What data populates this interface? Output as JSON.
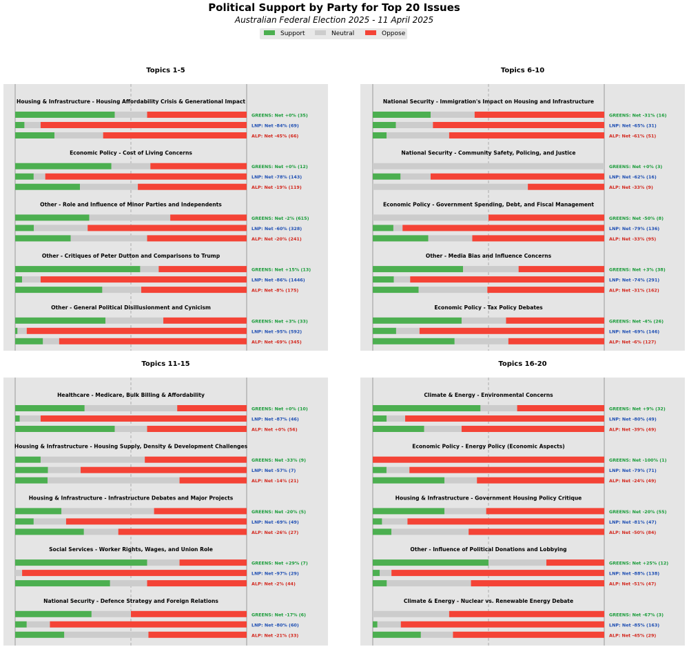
{
  "chart_data": {
    "type": "bar",
    "title": "Political Support by Party for Top 20 Issues",
    "subtitle": "Australian Federal Election 2025 - 11 April 2025",
    "legend": {
      "placement": "top-center",
      "items": [
        {
          "label": "Support",
          "color": "#4caf50"
        },
        {
          "label": "Neutral",
          "color": "#cccccc"
        },
        {
          "label": "Oppose",
          "color": "#f44336"
        }
      ]
    },
    "party_colors": {
      "GREENS": "#1a9c3a",
      "LNP": "#1f4fb3",
      "ALP": "#d3281e"
    },
    "panels": [
      {
        "title": "Topics 1-5",
        "topics": [
          {
            "title": "Housing & Infrastructure - Housing Affordability Crisis & Generational Impact",
            "bars": [
              {
                "party": "GREENS",
                "support": 43,
                "neutral": 14,
                "oppose": 43,
                "label": "GREENS: Net +0% (35)"
              },
              {
                "party": "LNP",
                "support": 4,
                "neutral": 7,
                "oppose": 89,
                "label": "LNP: Net -84% (69)"
              },
              {
                "party": "ALP",
                "support": 17,
                "neutral": 21,
                "oppose": 62,
                "label": "ALP: Net -45% (66)"
              }
            ]
          },
          {
            "title": "Economic Policy - Cost of Living Concerns",
            "bars": [
              {
                "party": "GREENS",
                "support": 42,
                "neutral": 17,
                "oppose": 42,
                "label": "GREENS: Net +0% (12)"
              },
              {
                "party": "LNP",
                "support": 8,
                "neutral": 5,
                "oppose": 87,
                "label": "LNP: Net -78% (143)"
              },
              {
                "party": "ALP",
                "support": 28,
                "neutral": 25,
                "oppose": 47,
                "label": "ALP: Net -19% (119)"
              }
            ]
          },
          {
            "title": "Other - Role and Influence of Minor Parties and Independents",
            "bars": [
              {
                "party": "GREENS",
                "support": 32,
                "neutral": 35,
                "oppose": 33,
                "label": "GREENS: Net -2% (615)"
              },
              {
                "party": "LNP",
                "support": 8,
                "neutral": 23,
                "oppose": 68,
                "label": "LNP: Net -60% (328)"
              },
              {
                "party": "ALP",
                "support": 24,
                "neutral": 33,
                "oppose": 43,
                "label": "ALP: Net -20% (241)"
              }
            ]
          },
          {
            "title": "Other - Critiques of Peter Dutton and Comparisons to Trump",
            "bars": [
              {
                "party": "GREENS",
                "support": 54,
                "neutral": 8,
                "oppose": 38,
                "label": "GREENS: Net +15% (13)"
              },
              {
                "party": "LNP",
                "support": 3,
                "neutral": 8,
                "oppose": 89,
                "label": "LNP: Net -86% (1446)"
              },
              {
                "party": "ALP",
                "support": 38,
                "neutral": 17,
                "oppose": 46,
                "label": "ALP: Net -8% (175)"
              }
            ]
          },
          {
            "title": "Other - General Political Disillusionment and Cynicism",
            "bars": [
              {
                "party": "GREENS",
                "support": 39,
                "neutral": 25,
                "oppose": 36,
                "label": "GREENS: Net +3% (33)"
              },
              {
                "party": "LNP",
                "support": 1,
                "neutral": 4,
                "oppose": 95,
                "label": "LNP: Net -95% (592)"
              },
              {
                "party": "ALP",
                "support": 12,
                "neutral": 7,
                "oppose": 81,
                "label": "ALP: Net -69% (345)"
              }
            ]
          }
        ]
      },
      {
        "title": "Topics 6-10",
        "topics": [
          {
            "title": "National Security - Immigration's Impact on Housing and Infrastructure",
            "bars": [
              {
                "party": "GREENS",
                "support": 25,
                "neutral": 19,
                "oppose": 56,
                "label": "GREENS: Net -31% (16)"
              },
              {
                "party": "LNP",
                "support": 10,
                "neutral": 16,
                "oppose": 74,
                "label": "LNP: Net -65% (31)"
              },
              {
                "party": "ALP",
                "support": 6,
                "neutral": 27,
                "oppose": 67,
                "label": "ALP: Net -61% (51)"
              }
            ]
          },
          {
            "title": "National Security - Community Safety, Policing, and Justice",
            "bars": [
              {
                "party": "GREENS",
                "support": 0,
                "neutral": 100,
                "oppose": 0,
                "label": "GREENS: Net +0% (3)"
              },
              {
                "party": "LNP",
                "support": 12,
                "neutral": 13,
                "oppose": 75,
                "label": "LNP: Net -62% (16)"
              },
              {
                "party": "ALP",
                "support": 0,
                "neutral": 67,
                "oppose": 33,
                "label": "ALP: Net -33% (9)"
              }
            ]
          },
          {
            "title": "Economic Policy - Government Spending, Debt, and Fiscal Management",
            "bars": [
              {
                "party": "GREENS",
                "support": 0,
                "neutral": 50,
                "oppose": 50,
                "label": "GREENS: Net -50% (8)"
              },
              {
                "party": "LNP",
                "support": 9,
                "neutral": 4,
                "oppose": 88,
                "label": "LNP: Net -79% (136)"
              },
              {
                "party": "ALP",
                "support": 24,
                "neutral": 19,
                "oppose": 57,
                "label": "ALP: Net -33% (95)"
              }
            ]
          },
          {
            "title": "Other - Media Bias and Influence Concerns",
            "bars": [
              {
                "party": "GREENS",
                "support": 39,
                "neutral": 24,
                "oppose": 37,
                "label": "GREENS: Net +3% (38)"
              },
              {
                "party": "LNP",
                "support": 9,
                "neutral": 7,
                "oppose": 83,
                "label": "LNP: Net -74% (291)"
              },
              {
                "party": "ALP",
                "support": 20,
                "neutral": 30,
                "oppose": 51,
                "label": "ALP: Net -31% (162)"
              }
            ]
          },
          {
            "title": "Economic Policy - Tax Policy Debates",
            "bars": [
              {
                "party": "GREENS",
                "support": 38,
                "neutral": 19,
                "oppose": 42,
                "label": "GREENS: Net -4% (26)"
              },
              {
                "party": "LNP",
                "support": 10,
                "neutral": 10,
                "oppose": 79,
                "label": "LNP: Net -69% (146)"
              },
              {
                "party": "ALP",
                "support": 35,
                "neutral": 23,
                "oppose": 41,
                "label": "ALP: Net -6% (127)"
              }
            ]
          }
        ]
      },
      {
        "title": "Topics 11-15",
        "topics": [
          {
            "title": "Healthcare - Medicare, Bulk Billing & Affordability",
            "bars": [
              {
                "party": "GREENS",
                "support": 30,
                "neutral": 40,
                "oppose": 30,
                "label": "GREENS: Net +0% (10)"
              },
              {
                "party": "LNP",
                "support": 2,
                "neutral": 9,
                "oppose": 89,
                "label": "LNP: Net -87% (46)"
              },
              {
                "party": "ALP",
                "support": 43,
                "neutral": 14,
                "oppose": 43,
                "label": "ALP: Net +0% (56)"
              }
            ]
          },
          {
            "title": "Housing & Infrastructure - Housing Supply, Density & Development Challenges",
            "bars": [
              {
                "party": "GREENS",
                "support": 11,
                "neutral": 45,
                "oppose": 44,
                "label": "GREENS: Net -33% (9)"
              },
              {
                "party": "LNP",
                "support": 14,
                "neutral": 14,
                "oppose": 71,
                "label": "LNP: Net -57% (7)"
              },
              {
                "party": "ALP",
                "support": 14,
                "neutral": 57,
                "oppose": 29,
                "label": "ALP: Net -14% (21)"
              }
            ]
          },
          {
            "title": "Housing & Infrastructure - Infrastructure Debates and Major Projects",
            "bars": [
              {
                "party": "GREENS",
                "support": 20,
                "neutral": 40,
                "oppose": 40,
                "label": "GREENS: Net -20% (5)"
              },
              {
                "party": "LNP",
                "support": 8,
                "neutral": 14,
                "oppose": 78,
                "label": "LNP: Net -69% (49)"
              },
              {
                "party": "ALP",
                "support": 30,
                "neutral": 15,
                "oppose": 56,
                "label": "ALP: Net -26% (27)"
              }
            ]
          },
          {
            "title": "Social Services - Worker Rights, Wages, and Union Role",
            "bars": [
              {
                "party": "GREENS",
                "support": 57,
                "neutral": 14,
                "oppose": 29,
                "label": "GREENS: Net +29% (7)"
              },
              {
                "party": "LNP",
                "support": 0,
                "neutral": 3,
                "oppose": 97,
                "label": "LNP: Net -97% (29)"
              },
              {
                "party": "ALP",
                "support": 41,
                "neutral": 16,
                "oppose": 43,
                "label": "ALP: Net -2% (44)"
              }
            ]
          },
          {
            "title": "National Security - Defence Strategy and Foreign Relations",
            "bars": [
              {
                "party": "GREENS",
                "support": 33,
                "neutral": 17,
                "oppose": 50,
                "label": "GREENS: Net -17% (6)"
              },
              {
                "party": "LNP",
                "support": 5,
                "neutral": 10,
                "oppose": 85,
                "label": "LNP: Net -80% (60)"
              },
              {
                "party": "ALP",
                "support": 21,
                "neutral": 36,
                "oppose": 42,
                "label": "ALP: Net -21% (33)"
              }
            ]
          }
        ]
      },
      {
        "title": "Topics 16-20",
        "topics": [
          {
            "title": "Climate & Energy - Environmental Concerns",
            "bars": [
              {
                "party": "GREENS",
                "support": 47,
                "neutral": 16,
                "oppose": 38,
                "label": "GREENS: Net +9% (32)"
              },
              {
                "party": "LNP",
                "support": 6,
                "neutral": 8,
                "oppose": 86,
                "label": "LNP: Net -80% (49)"
              },
              {
                "party": "ALP",
                "support": 22,
                "neutral": 16,
                "oppose": 61,
                "label": "ALP: Net -39% (49)"
              }
            ]
          },
          {
            "title": "Economic Policy - Energy Policy (Economic Aspects)",
            "bars": [
              {
                "party": "GREENS",
                "support": 0,
                "neutral": 0,
                "oppose": 100,
                "label": "GREENS: Net -100% (1)"
              },
              {
                "party": "LNP",
                "support": 6,
                "neutral": 10,
                "oppose": 85,
                "label": "LNP: Net -79% (71)"
              },
              {
                "party": "ALP",
                "support": 31,
                "neutral": 14,
                "oppose": 55,
                "label": "ALP: Net -24% (49)"
              }
            ]
          },
          {
            "title": "Housing & Infrastructure - Government Housing Policy Critique",
            "bars": [
              {
                "party": "GREENS",
                "support": 31,
                "neutral": 18,
                "oppose": 51,
                "label": "GREENS: Net -20% (55)"
              },
              {
                "party": "LNP",
                "support": 4,
                "neutral": 11,
                "oppose": 85,
                "label": "LNP: Net -81% (47)"
              },
              {
                "party": "ALP",
                "support": 8,
                "neutral": 33,
                "oppose": 58,
                "label": "ALP: Net -50% (84)"
              }
            ]
          },
          {
            "title": "Other - Influence of Political Donations and Lobbying",
            "bars": [
              {
                "party": "GREENS",
                "support": 50,
                "neutral": 25,
                "oppose": 25,
                "label": "GREENS: Net +25% (12)"
              },
              {
                "party": "LNP",
                "support": 3,
                "neutral": 5,
                "oppose": 91,
                "label": "LNP: Net -88% (138)"
              },
              {
                "party": "ALP",
                "support": 6,
                "neutral": 36,
                "oppose": 57,
                "label": "ALP: Net -51% (47)"
              }
            ]
          },
          {
            "title": "Climate & Energy - Nuclear vs. Renewable Energy Debate",
            "bars": [
              {
                "party": "GREENS",
                "support": 0,
                "neutral": 33,
                "oppose": 67,
                "label": "GREENS: Net -67% (3)"
              },
              {
                "party": "LNP",
                "support": 2,
                "neutral": 10,
                "oppose": 87,
                "label": "LNP: Net -85% (163)"
              },
              {
                "party": "ALP",
                "support": 21,
                "neutral": 14,
                "oppose": 66,
                "label": "ALP: Net -45% (29)"
              }
            ]
          }
        ]
      }
    ]
  }
}
